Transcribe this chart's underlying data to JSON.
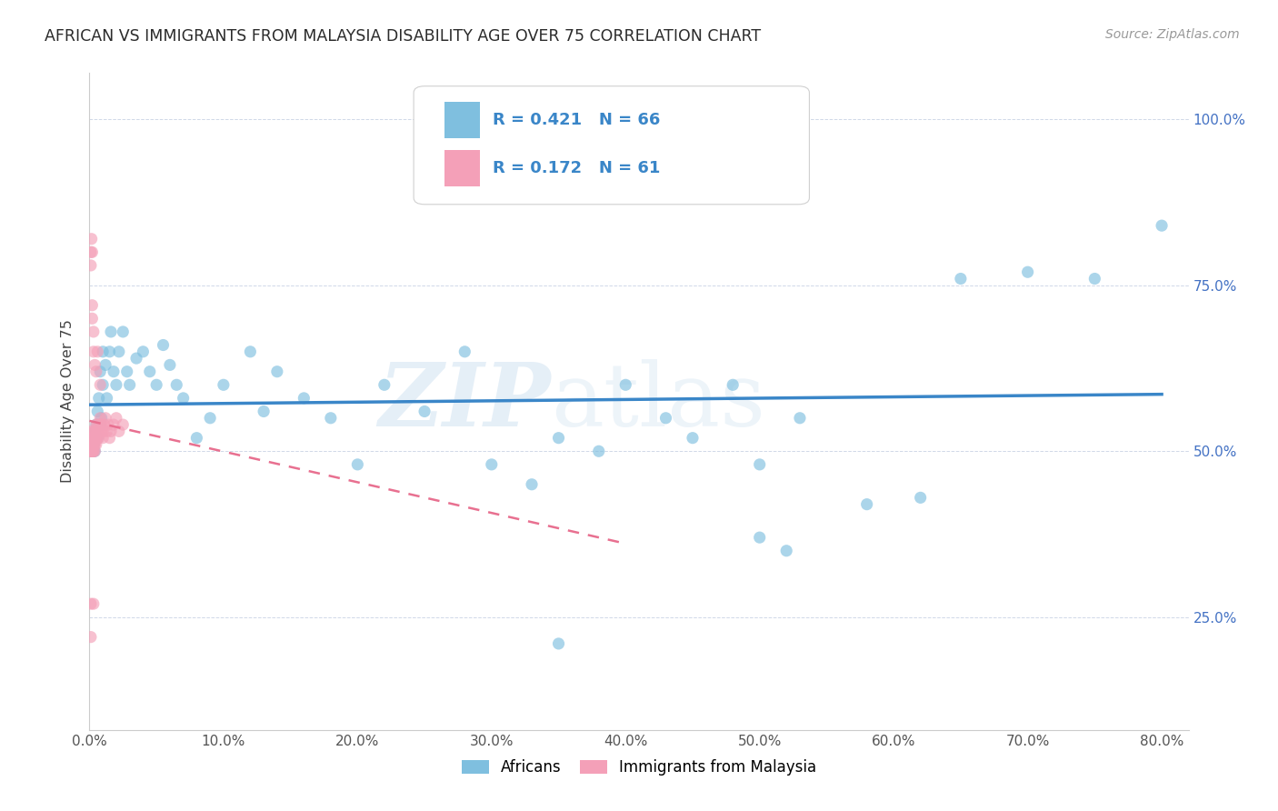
{
  "title": "AFRICAN VS IMMIGRANTS FROM MALAYSIA DISABILITY AGE OVER 75 CORRELATION CHART",
  "source": "Source: ZipAtlas.com",
  "ylabel": "Disability Age Over 75",
  "legend_african_R": "0.421",
  "legend_african_N": "66",
  "legend_malaysia_R": "0.172",
  "legend_malaysia_N": "61",
  "legend_label_african": "Africans",
  "legend_label_malaysia": "Immigrants from Malaysia",
  "african_color": "#7fbfdf",
  "malaysia_color": "#f4a0b8",
  "african_line_color": "#3a86c8",
  "malaysia_line_color": "#e87090",
  "regression_text_color": "#3a86c8",
  "watermark_zip": "ZIP",
  "watermark_atlas": "atlas",
  "background_color": "#ffffff",
  "grid_color": "#d0d8e8",
  "xlim": [
    0.0,
    0.82
  ],
  "ylim": [
    0.08,
    1.07
  ],
  "xticks": [
    0.0,
    0.1,
    0.2,
    0.3,
    0.4,
    0.5,
    0.6,
    0.7,
    0.8
  ],
  "yticks": [
    0.25,
    0.5,
    0.75,
    1.0
  ],
  "africans_x": [
    0.001,
    0.001,
    0.002,
    0.002,
    0.002,
    0.003,
    0.003,
    0.003,
    0.004,
    0.004,
    0.005,
    0.005,
    0.006,
    0.006,
    0.007,
    0.008,
    0.008,
    0.009,
    0.01,
    0.01,
    0.012,
    0.013,
    0.015,
    0.016,
    0.018,
    0.02,
    0.022,
    0.025,
    0.028,
    0.03,
    0.035,
    0.04,
    0.045,
    0.05,
    0.055,
    0.06,
    0.065,
    0.07,
    0.08,
    0.09,
    0.1,
    0.12,
    0.13,
    0.14,
    0.16,
    0.18,
    0.2,
    0.22,
    0.25,
    0.28,
    0.3,
    0.33,
    0.35,
    0.38,
    0.4,
    0.43,
    0.45,
    0.48,
    0.5,
    0.53,
    0.58,
    0.62,
    0.65,
    0.7,
    0.75,
    0.8
  ],
  "africans_y": [
    0.52,
    0.5,
    0.51,
    0.5,
    0.52,
    0.51,
    0.5,
    0.52,
    0.53,
    0.5,
    0.52,
    0.54,
    0.56,
    0.52,
    0.58,
    0.54,
    0.62,
    0.55,
    0.6,
    0.65,
    0.63,
    0.58,
    0.65,
    0.68,
    0.62,
    0.6,
    0.65,
    0.68,
    0.62,
    0.6,
    0.64,
    0.65,
    0.62,
    0.6,
    0.66,
    0.63,
    0.6,
    0.58,
    0.52,
    0.55,
    0.6,
    0.65,
    0.56,
    0.62,
    0.58,
    0.55,
    0.48,
    0.6,
    0.56,
    0.65,
    0.48,
    0.45,
    0.52,
    0.5,
    0.6,
    0.55,
    0.52,
    0.6,
    0.48,
    0.55,
    0.42,
    0.43,
    0.76,
    0.77,
    0.76,
    0.84
  ],
  "malaysia_x": [
    0.0005,
    0.0005,
    0.001,
    0.001,
    0.001,
    0.001,
    0.001,
    0.0015,
    0.0015,
    0.002,
    0.002,
    0.002,
    0.002,
    0.0025,
    0.003,
    0.003,
    0.003,
    0.003,
    0.003,
    0.0035,
    0.004,
    0.004,
    0.004,
    0.004,
    0.0045,
    0.005,
    0.005,
    0.005,
    0.005,
    0.006,
    0.006,
    0.006,
    0.007,
    0.007,
    0.008,
    0.008,
    0.009,
    0.009,
    0.01,
    0.01,
    0.011,
    0.012,
    0.013,
    0.014,
    0.015,
    0.016,
    0.018,
    0.02,
    0.022,
    0.025,
    0.001,
    0.001,
    0.002,
    0.002,
    0.003,
    0.003,
    0.004,
    0.005,
    0.006,
    0.008,
    0.003
  ],
  "malaysia_y": [
    0.5,
    0.51,
    0.5,
    0.51,
    0.52,
    0.5,
    0.53,
    0.51,
    0.5,
    0.5,
    0.51,
    0.52,
    0.5,
    0.51,
    0.5,
    0.51,
    0.52,
    0.5,
    0.53,
    0.51,
    0.52,
    0.53,
    0.51,
    0.5,
    0.52,
    0.52,
    0.53,
    0.54,
    0.51,
    0.52,
    0.53,
    0.54,
    0.52,
    0.53,
    0.54,
    0.55,
    0.53,
    0.54,
    0.52,
    0.53,
    0.54,
    0.55,
    0.53,
    0.54,
    0.52,
    0.53,
    0.54,
    0.55,
    0.53,
    0.54,
    0.78,
    0.8,
    0.72,
    0.7,
    0.65,
    0.68,
    0.63,
    0.62,
    0.65,
    0.6,
    0.27
  ]
}
